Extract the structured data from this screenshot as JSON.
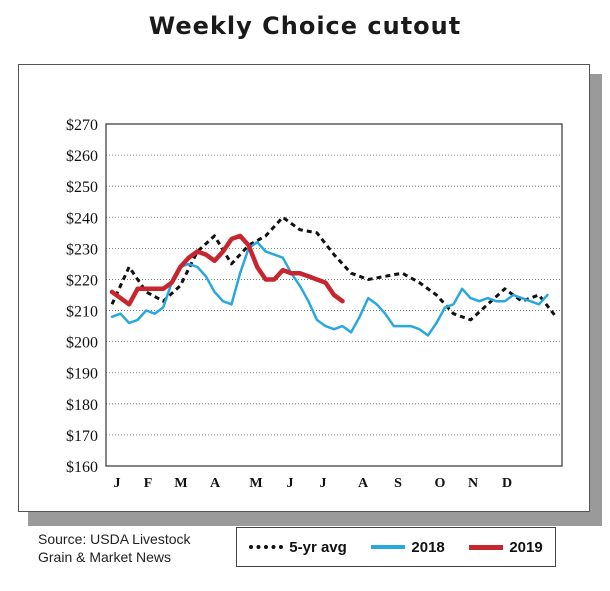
{
  "chart_data": {
    "type": "line",
    "title": "Weekly Choice cutout",
    "xlabel": "",
    "ylabel": "",
    "ylim": [
      160,
      270
    ],
    "yticks": [
      "$270",
      "$260",
      "$250",
      "$240",
      "$230",
      "$220",
      "$210",
      "$200",
      "$190",
      "$180",
      "$170",
      "$160"
    ],
    "ytick_values": [
      270,
      260,
      250,
      240,
      230,
      220,
      210,
      200,
      190,
      180,
      170,
      160
    ],
    "months": [
      "J",
      "F",
      "M",
      "A",
      "M",
      "J",
      "J",
      "A",
      "S",
      "O",
      "N",
      "D"
    ],
    "grid": "horizontal dotted",
    "series": [
      {
        "name": "5-yr avg",
        "color": "#111111",
        "style": "dotted",
        "week": [
          1,
          3,
          5,
          7,
          9,
          11,
          13,
          15,
          17,
          19,
          21,
          23,
          25,
          27,
          29,
          31,
          33,
          35,
          37,
          39,
          41,
          43,
          45,
          47,
          49,
          51,
          53
        ],
        "values": [
          212,
          224,
          216,
          213,
          218,
          229,
          234,
          225,
          231,
          234,
          240,
          236,
          235,
          228,
          222,
          220,
          221,
          222,
          219,
          215,
          209,
          207,
          212,
          217,
          213,
          215,
          208
        ]
      },
      {
        "name": "2018",
        "color": "#29a8e0",
        "style": "solid",
        "week": [
          1,
          2,
          3,
          4,
          5,
          6,
          7,
          8,
          9,
          10,
          11,
          12,
          13,
          14,
          15,
          16,
          17,
          18,
          19,
          20,
          21,
          22,
          23,
          24,
          25,
          26,
          27,
          28,
          29,
          30,
          31,
          32,
          33,
          34,
          35,
          36,
          37,
          38,
          39,
          40,
          41,
          42,
          43,
          44,
          45,
          46,
          47,
          48,
          49,
          50,
          51,
          52
        ],
        "values": [
          208,
          209,
          206,
          207,
          210,
          209,
          211,
          219,
          224,
          225,
          224,
          221,
          216,
          213,
          212,
          222,
          230,
          232,
          229,
          228,
          227,
          222,
          218,
          213,
          207,
          205,
          204,
          205,
          203,
          208,
          214,
          212,
          209,
          205,
          205,
          205,
          204,
          202,
          206,
          211,
          212,
          217,
          214,
          213,
          214,
          213,
          213,
          215,
          214,
          213,
          212,
          215
        ]
      },
      {
        "name": "2019",
        "color": "#c8262e",
        "style": "solid",
        "week": [
          1,
          2,
          3,
          4,
          5,
          6,
          7,
          8,
          9,
          10,
          11,
          12,
          13,
          14,
          15,
          16,
          17,
          18,
          19,
          20,
          21,
          22,
          23,
          24,
          25,
          26,
          27,
          28
        ],
        "values": [
          216,
          214,
          212,
          217,
          217,
          217,
          217,
          219,
          224,
          227,
          229,
          228,
          226,
          229,
          233,
          234,
          231,
          224,
          220,
          220,
          223,
          222,
          222,
          221,
          220,
          219,
          215,
          213
        ]
      }
    ]
  },
  "source": {
    "line1": "Source: USDA Livestock",
    "line2": "Grain & Market News"
  },
  "legend": {
    "avg_label": "5-yr avg",
    "y2018_label": "2018",
    "y2019_label": "2019"
  }
}
